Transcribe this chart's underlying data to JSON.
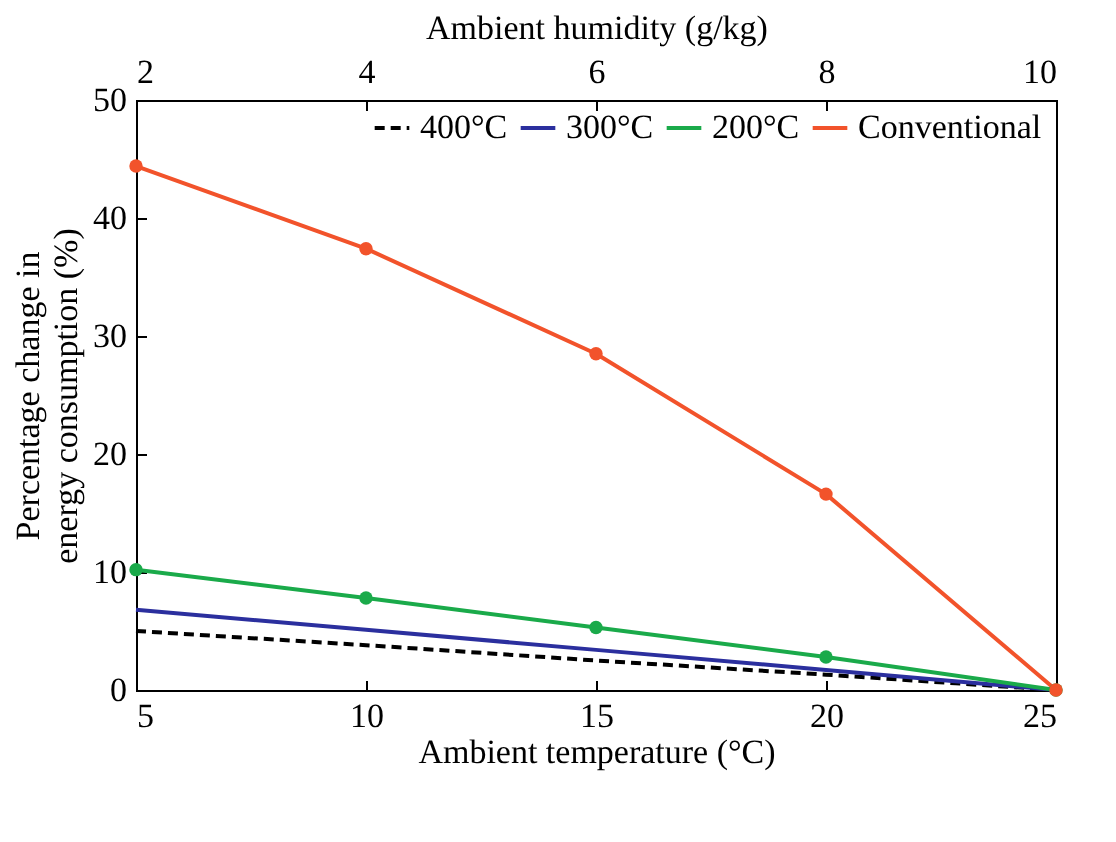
{
  "chart_data": {
    "type": "line",
    "xlabel": "Ambient temperature (°C)",
    "ylabel": "Percentage change in energy consumption (%)",
    "x2label": "Ambient humidity (g/kg)",
    "x": [
      5,
      10,
      15,
      20,
      25
    ],
    "xlim": [
      5,
      25
    ],
    "xticks": [
      5,
      10,
      15,
      20,
      25
    ],
    "x2lim": [
      2,
      10
    ],
    "x2ticks": [
      2,
      4,
      6,
      8,
      10
    ],
    "ylim": [
      0,
      50
    ],
    "yticks": [
      0,
      10,
      20,
      30,
      40,
      50
    ],
    "grid": false,
    "legend": "top right",
    "series": [
      {
        "name": "400°C",
        "color": "#000000",
        "line_style": "dashed",
        "marker": "none",
        "values": [
          5.0,
          3.8,
          2.5,
          1.3,
          0
        ]
      },
      {
        "name": "300°C",
        "color": "#2b2f9e",
        "line_style": "solid",
        "marker": "none",
        "values": [
          6.8,
          5.1,
          3.4,
          1.7,
          0
        ]
      },
      {
        "name": "200°C",
        "color": "#1aaa4a",
        "line_style": "solid",
        "marker": "circle",
        "values": [
          10.2,
          7.8,
          5.3,
          2.8,
          0
        ]
      },
      {
        "name": "Conventional",
        "color": "#f2532b",
        "line_style": "solid",
        "marker": "circle",
        "values": [
          44.4,
          37.4,
          28.5,
          16.6,
          0
        ]
      }
    ]
  }
}
